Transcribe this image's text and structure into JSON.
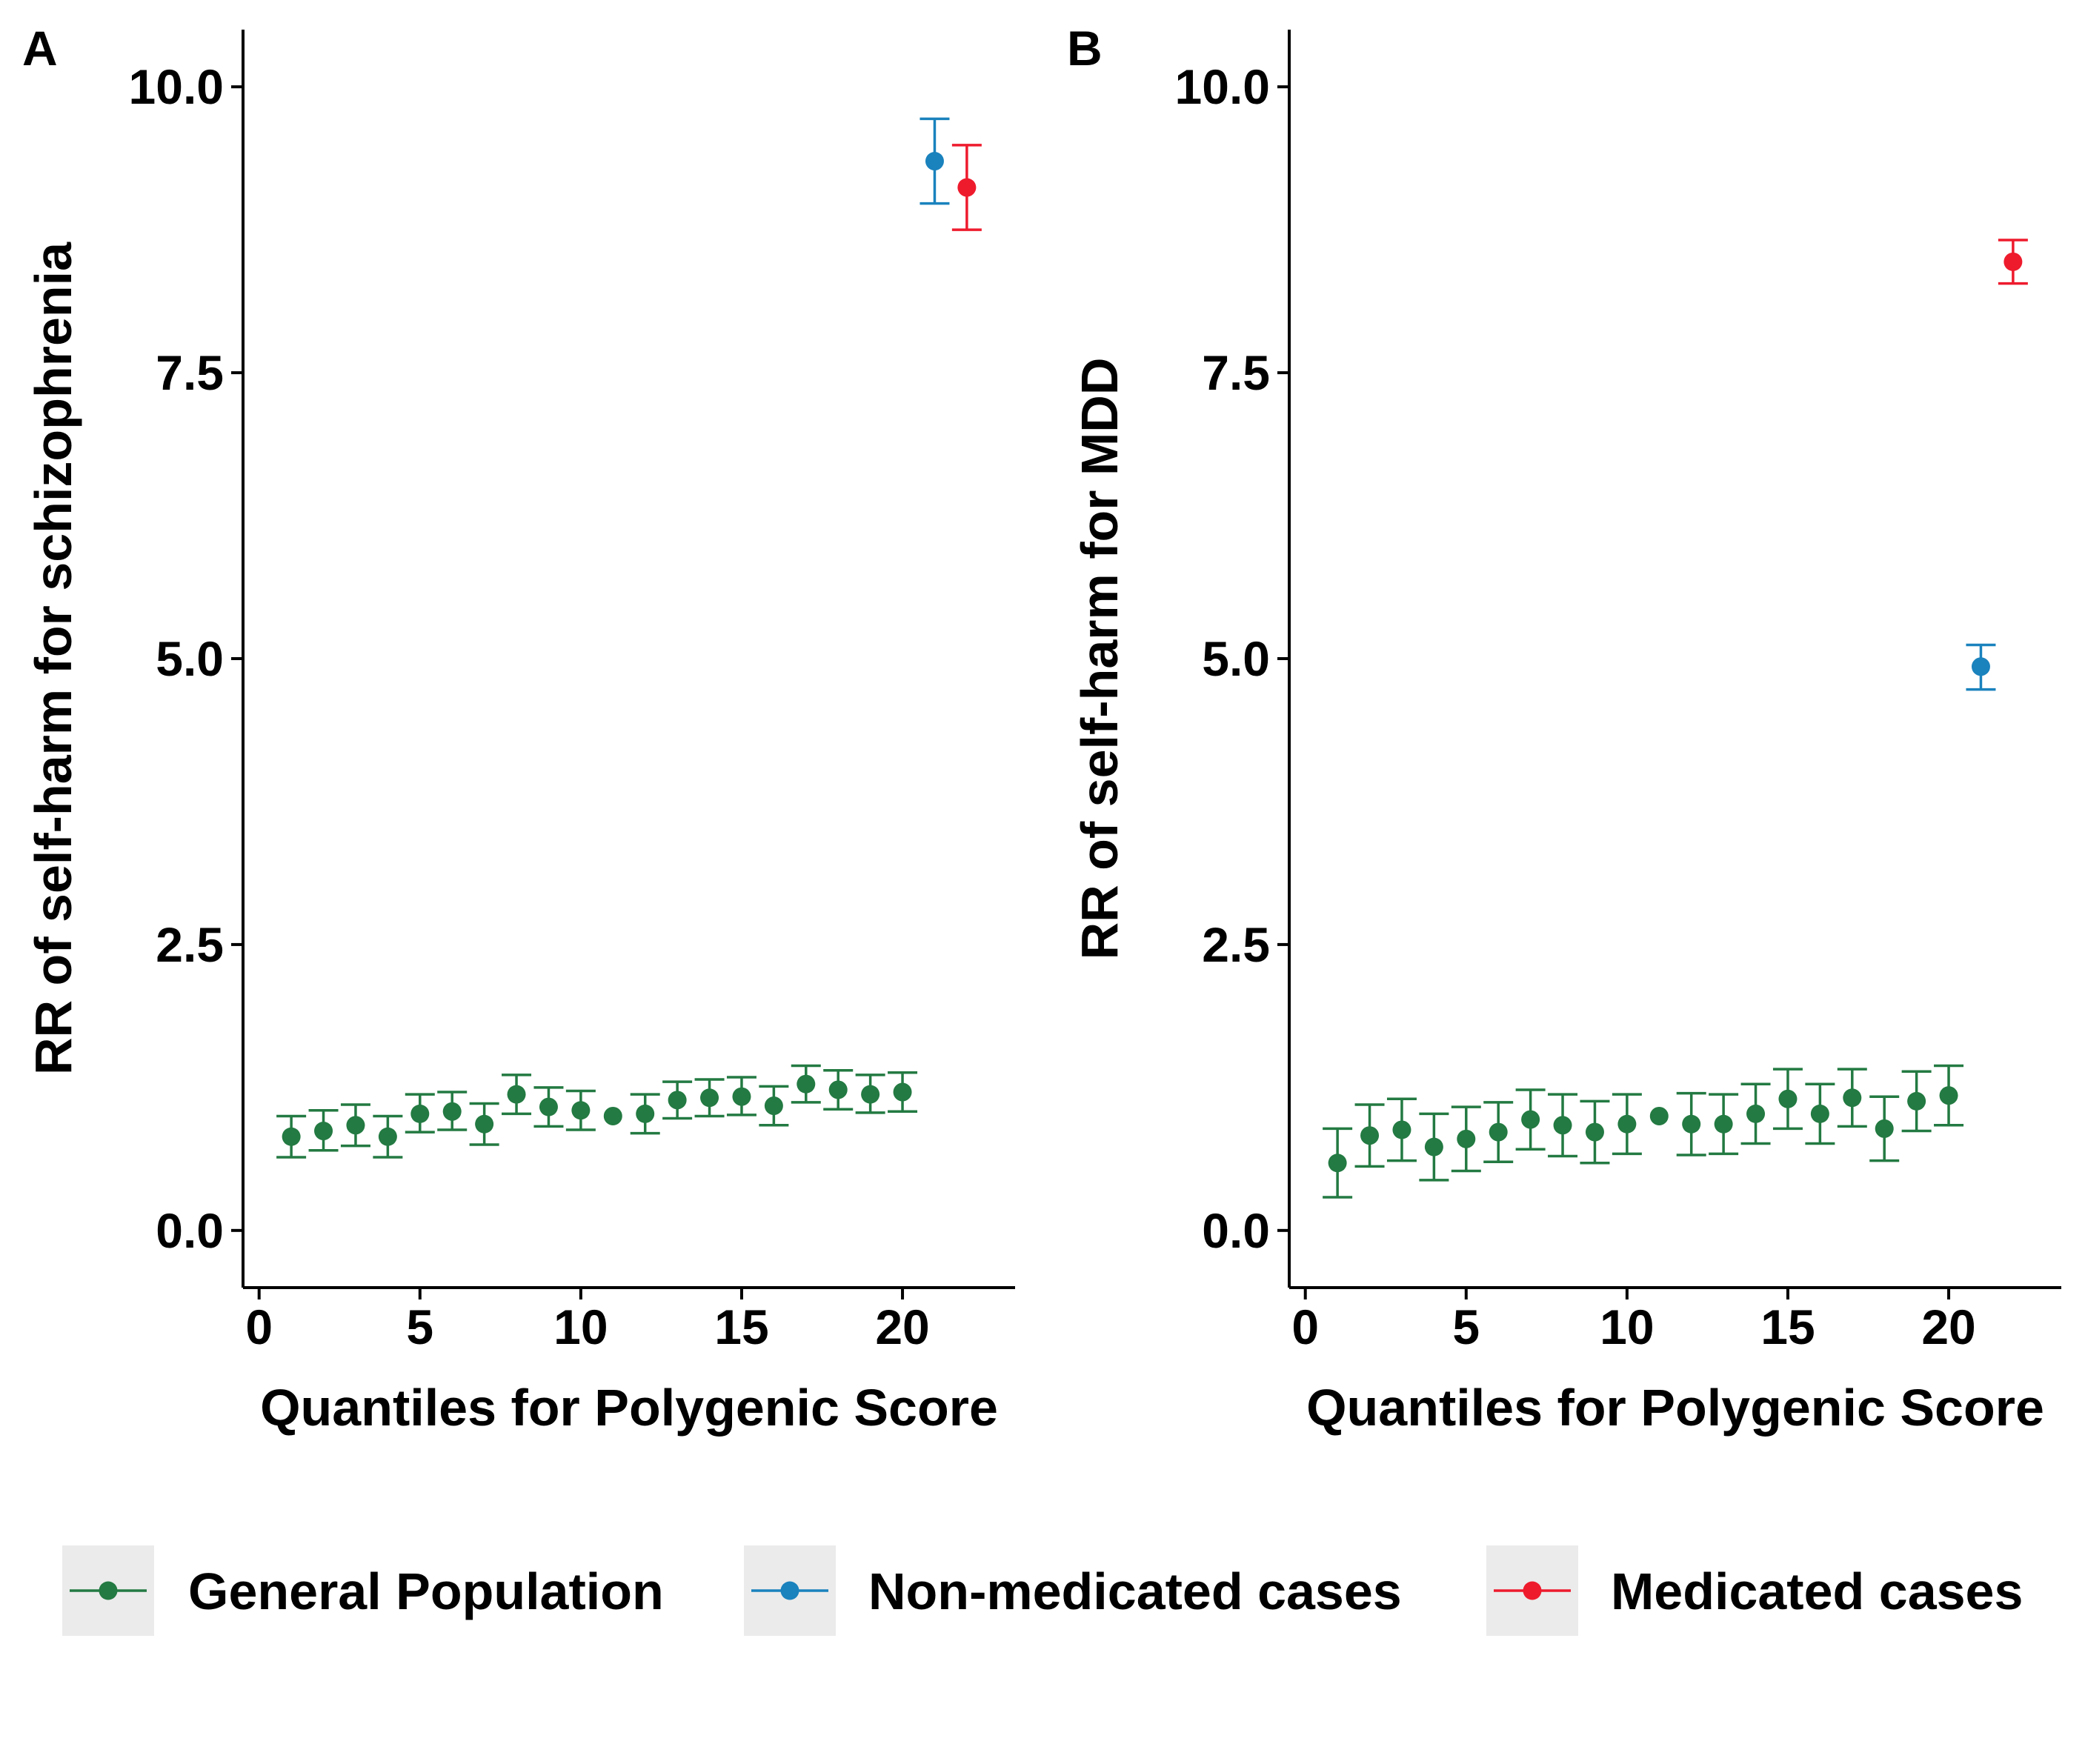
{
  "colors": {
    "general": "#237A42",
    "nonmed": "#1A82BD",
    "med": "#EE1B2D",
    "legend_key_bg": "#EBEBEB"
  },
  "legend": {
    "items": [
      {
        "key": "general",
        "label": "General Population"
      },
      {
        "key": "nonmed",
        "label": "Non-medicated cases"
      },
      {
        "key": "med",
        "label": "Medicated cases"
      }
    ]
  },
  "chart_data": [
    {
      "panel": "A",
      "type": "scatter",
      "xlabel": "Quantiles for Polygenic Score",
      "ylabel": "RR of self-harm for schizophrenia",
      "xlim": [
        -0.5,
        23.5
      ],
      "ylim": [
        -0.5,
        10.5
      ],
      "x_ticks": [
        0,
        5,
        10,
        15,
        20
      ],
      "x_tick_labels": [
        "0",
        "5",
        "10",
        "15",
        "20"
      ],
      "y_ticks": [
        0,
        2.5,
        5,
        7.5,
        10
      ],
      "y_tick_labels": [
        "0.0",
        "2.5",
        "5.0",
        "7.5",
        "10.0"
      ],
      "series": [
        {
          "key": "general",
          "name": "General Population",
          "x": [
            1,
            2,
            3,
            4,
            5,
            6,
            7,
            8,
            9,
            10,
            11,
            12,
            13,
            14,
            15,
            16,
            17,
            18,
            19,
            20
          ],
          "y": [
            0.82,
            0.87,
            0.92,
            0.82,
            1.02,
            1.04,
            0.93,
            1.19,
            1.08,
            1.05,
            1.0,
            1.02,
            1.14,
            1.16,
            1.17,
            1.09,
            1.28,
            1.23,
            1.19,
            1.21
          ],
          "lower": [
            0.64,
            0.7,
            0.74,
            0.64,
            0.86,
            0.88,
            0.75,
            1.02,
            0.91,
            0.88,
            1.0,
            0.85,
            0.98,
            1.0,
            1.01,
            0.92,
            1.12,
            1.06,
            1.03,
            1.04
          ],
          "upper": [
            1.0,
            1.05,
            1.1,
            1.0,
            1.19,
            1.21,
            1.11,
            1.36,
            1.25,
            1.22,
            1.0,
            1.19,
            1.3,
            1.32,
            1.34,
            1.26,
            1.44,
            1.4,
            1.36,
            1.38
          ]
        },
        {
          "key": "nonmed",
          "name": "Non-medicated cases",
          "x": [
            21
          ],
          "y": [
            9.35
          ],
          "lower": [
            8.98
          ],
          "upper": [
            9.72
          ]
        },
        {
          "key": "med",
          "name": "Medicated cases",
          "x": [
            22
          ],
          "y": [
            9.12
          ],
          "lower": [
            8.75
          ],
          "upper": [
            9.49
          ]
        }
      ]
    },
    {
      "panel": "B",
      "type": "scatter",
      "xlabel": "Quantiles for Polygenic Score",
      "ylabel": "RR of self-harm for MDD",
      "xlim": [
        -0.5,
        23.5
      ],
      "ylim": [
        -0.5,
        10.5
      ],
      "x_ticks": [
        0,
        5,
        10,
        15,
        20
      ],
      "x_tick_labels": [
        "0",
        "5",
        "10",
        "15",
        "20"
      ],
      "y_ticks": [
        0,
        2.5,
        5,
        7.5,
        10
      ],
      "y_tick_labels": [
        "0.0",
        "2.5",
        "5.0",
        "7.5",
        "10.0"
      ],
      "series": [
        {
          "key": "general",
          "name": "General Population",
          "x": [
            1,
            2,
            3,
            4,
            5,
            6,
            7,
            8,
            9,
            10,
            11,
            12,
            13,
            14,
            15,
            16,
            17,
            18,
            19,
            20
          ],
          "y": [
            0.59,
            0.83,
            0.88,
            0.73,
            0.8,
            0.86,
            0.97,
            0.92,
            0.86,
            0.93,
            1.0,
            0.93,
            0.93,
            1.02,
            1.15,
            1.02,
            1.16,
            0.89,
            1.13,
            1.18
          ],
          "lower": [
            0.29,
            0.56,
            0.61,
            0.44,
            0.52,
            0.6,
            0.71,
            0.65,
            0.59,
            0.67,
            1.0,
            0.66,
            0.67,
            0.76,
            0.89,
            0.76,
            0.91,
            0.61,
            0.87,
            0.92
          ],
          "upper": [
            0.89,
            1.1,
            1.15,
            1.02,
            1.08,
            1.12,
            1.23,
            1.19,
            1.13,
            1.19,
            1.0,
            1.2,
            1.19,
            1.28,
            1.41,
            1.28,
            1.41,
            1.17,
            1.39,
            1.44
          ]
        },
        {
          "key": "nonmed",
          "name": "Non-medicated cases",
          "x": [
            21
          ],
          "y": [
            4.93
          ],
          "lower": [
            4.73
          ],
          "upper": [
            5.12
          ]
        },
        {
          "key": "med",
          "name": "Medicated cases",
          "x": [
            22
          ],
          "y": [
            8.47
          ],
          "lower": [
            8.28
          ],
          "upper": [
            8.66
          ]
        }
      ]
    }
  ]
}
